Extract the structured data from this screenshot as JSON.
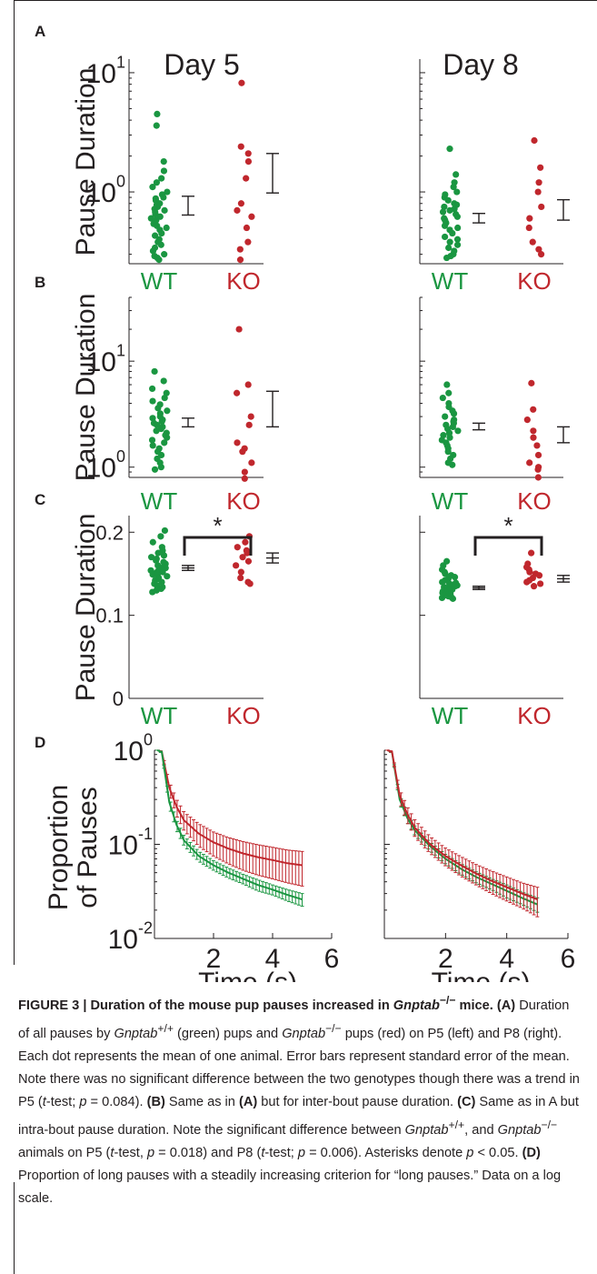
{
  "figure": {
    "panel_letters": [
      "A",
      "B",
      "C",
      "D"
    ],
    "columns": [
      "Day 5",
      "Day 8"
    ],
    "ylabel_pause": "Pause Duration",
    "ylabel_prop_1": "Proportion",
    "ylabel_prop_2": "of Pauses",
    "xlabel_time": "Time (s)",
    "groups": [
      "WT",
      "KO"
    ],
    "significance": "*",
    "colors": {
      "WT": "#1a9641",
      "KO": "#c0272d",
      "axis": "#231f20"
    }
  },
  "chart_data": [
    {
      "panel": "A",
      "column": "Day 5",
      "type": "scatter",
      "yscale": "log",
      "ylim": [
        0.25,
        13
      ],
      "yticks": [
        {
          "value": 1,
          "label": "10^0"
        },
        {
          "value": 10,
          "label": "10^1"
        }
      ],
      "series": [
        {
          "name": "WT",
          "values": [
            4.5,
            3.6,
            1.8,
            1.5,
            1.3,
            1.2,
            1.1,
            1.0,
            0.95,
            0.9,
            0.88,
            0.85,
            0.8,
            0.78,
            0.75,
            0.72,
            0.7,
            0.68,
            0.65,
            0.62,
            0.6,
            0.58,
            0.56,
            0.54,
            0.52,
            0.5,
            0.48,
            0.45,
            0.43,
            0.4,
            0.38,
            0.36,
            0.34,
            0.32,
            0.3,
            0.29,
            0.28,
            0.27
          ]
        },
        {
          "name": "KO",
          "values": [
            8.2,
            2.4,
            2.1,
            1.8,
            1.3,
            0.8,
            0.7,
            0.62,
            0.5,
            0.38,
            0.33,
            0.27
          ]
        }
      ],
      "errorbars": [
        {
          "name": "WT",
          "mean": 0.75,
          "low": 0.64,
          "high": 0.92
        },
        {
          "name": "KO",
          "mean": 1.4,
          "low": 0.98,
          "high": 2.1
        }
      ]
    },
    {
      "panel": "A",
      "column": "Day 8",
      "type": "scatter",
      "yscale": "log",
      "ylim": [
        0.25,
        13
      ],
      "yticks": [
        {
          "value": 1,
          "label": ""
        },
        {
          "value": 10,
          "label": ""
        }
      ],
      "series": [
        {
          "name": "WT",
          "values": [
            2.3,
            1.4,
            1.2,
            1.1,
            1.0,
            0.95,
            0.9,
            0.85,
            0.8,
            0.78,
            0.75,
            0.72,
            0.7,
            0.68,
            0.65,
            0.62,
            0.6,
            0.58,
            0.55,
            0.52,
            0.5,
            0.48,
            0.45,
            0.42,
            0.4,
            0.38,
            0.36,
            0.34,
            0.32,
            0.3,
            0.29,
            0.28
          ]
        },
        {
          "name": "KO",
          "values": [
            2.7,
            1.6,
            1.2,
            1.0,
            0.75,
            0.6,
            0.5,
            0.38,
            0.33,
            0.3
          ]
        }
      ],
      "errorbars": [
        {
          "name": "WT",
          "mean": 0.6,
          "low": 0.55,
          "high": 0.66
        },
        {
          "name": "KO",
          "mean": 0.7,
          "low": 0.58,
          "high": 0.86
        }
      ]
    },
    {
      "panel": "B",
      "column": "Day 5",
      "type": "scatter",
      "yscale": "log",
      "ylim": [
        0.8,
        40
      ],
      "yticks": [
        {
          "value": 1,
          "label": "10^0"
        },
        {
          "value": 10,
          "label": "10^1"
        }
      ],
      "series": [
        {
          "name": "WT",
          "values": [
            8.0,
            6.5,
            5.5,
            5.0,
            4.5,
            4.2,
            3.9,
            3.6,
            3.4,
            3.2,
            3.0,
            2.9,
            2.8,
            2.7,
            2.6,
            2.5,
            2.4,
            2.3,
            2.2,
            2.1,
            2.0,
            1.9,
            1.8,
            1.7,
            1.6,
            1.5,
            1.4,
            1.3,
            1.2,
            1.1,
            1.0,
            0.95
          ]
        },
        {
          "name": "KO",
          "values": [
            20,
            6.0,
            5.0,
            3.0,
            2.5,
            1.7,
            1.5,
            1.4,
            1.1,
            0.9,
            0.78
          ]
        }
      ],
      "errorbars": [
        {
          "name": "WT",
          "mean": 2.6,
          "low": 2.4,
          "high": 2.9
        },
        {
          "name": "KO",
          "mean": 3.4,
          "low": 2.4,
          "high": 5.2
        }
      ]
    },
    {
      "panel": "B",
      "column": "Day 8",
      "type": "scatter",
      "yscale": "log",
      "ylim": [
        0.8,
        40
      ],
      "yticks": [
        {
          "value": 1,
          "label": ""
        },
        {
          "value": 10,
          "label": ""
        }
      ],
      "series": [
        {
          "name": "WT",
          "values": [
            6.0,
            5.0,
            4.5,
            4.0,
            3.7,
            3.4,
            3.2,
            3.0,
            2.8,
            2.7,
            2.6,
            2.5,
            2.4,
            2.3,
            2.2,
            2.1,
            2.0,
            1.9,
            1.8,
            1.7,
            1.6,
            1.5,
            1.4,
            1.3,
            1.2,
            1.1,
            1.05
          ]
        },
        {
          "name": "KO",
          "values": [
            6.2,
            3.5,
            2.8,
            2.2,
            1.9,
            1.6,
            1.3,
            1.1,
            1.0,
            0.95,
            0.8
          ]
        }
      ],
      "errorbars": [
        {
          "name": "WT",
          "mean": 2.4,
          "low": 2.25,
          "high": 2.6
        },
        {
          "name": "KO",
          "mean": 2.0,
          "low": 1.7,
          "high": 2.4
        }
      ]
    },
    {
      "panel": "C",
      "column": "Day 5",
      "type": "scatter",
      "yscale": "linear",
      "ylim": [
        0,
        0.22
      ],
      "yticks": [
        {
          "value": 0,
          "label": "0"
        },
        {
          "value": 0.1,
          "label": "0.1"
        },
        {
          "value": 0.2,
          "label": "0.2"
        }
      ],
      "series": [
        {
          "name": "WT",
          "values": [
            0.202,
            0.195,
            0.188,
            0.182,
            0.178,
            0.175,
            0.172,
            0.17,
            0.168,
            0.166,
            0.164,
            0.162,
            0.16,
            0.158,
            0.157,
            0.156,
            0.155,
            0.154,
            0.153,
            0.152,
            0.151,
            0.15,
            0.149,
            0.148,
            0.147,
            0.146,
            0.145,
            0.144,
            0.142,
            0.14,
            0.138,
            0.136,
            0.134,
            0.132,
            0.13,
            0.128
          ]
        },
        {
          "name": "KO",
          "values": [
            0.195,
            0.188,
            0.182,
            0.178,
            0.175,
            0.17,
            0.165,
            0.16,
            0.152,
            0.145,
            0.14,
            0.138
          ]
        }
      ],
      "errorbars": [
        {
          "name": "WT",
          "mean": 0.157,
          "low": 0.154,
          "high": 0.16
        },
        {
          "name": "KO",
          "mean": 0.169,
          "low": 0.163,
          "high": 0.175
        }
      ],
      "bracket": {
        "from": "WT",
        "to": "KO",
        "label": "*"
      }
    },
    {
      "panel": "C",
      "column": "Day 8",
      "type": "scatter",
      "yscale": "linear",
      "ylim": [
        0,
        0.22
      ],
      "yticks": [
        {
          "value": 0,
          "label": ""
        },
        {
          "value": 0.1,
          "label": ""
        },
        {
          "value": 0.2,
          "label": ""
        }
      ],
      "series": [
        {
          "name": "WT",
          "values": [
            0.165,
            0.16,
            0.155,
            0.152,
            0.15,
            0.148,
            0.146,
            0.144,
            0.142,
            0.14,
            0.139,
            0.138,
            0.137,
            0.136,
            0.135,
            0.134,
            0.133,
            0.132,
            0.131,
            0.13,
            0.129,
            0.128,
            0.127,
            0.126,
            0.125,
            0.124,
            0.123,
            0.122,
            0.121,
            0.12
          ]
        },
        {
          "name": "KO",
          "values": [
            0.175,
            0.162,
            0.158,
            0.155,
            0.152,
            0.15,
            0.148,
            0.145,
            0.142,
            0.14,
            0.138,
            0.135
          ]
        }
      ],
      "errorbars": [
        {
          "name": "WT",
          "mean": 0.133,
          "low": 0.131,
          "high": 0.135
        },
        {
          "name": "KO",
          "mean": 0.144,
          "low": 0.14,
          "high": 0.148
        }
      ],
      "bracket": {
        "from": "WT",
        "to": "KO",
        "label": "*"
      }
    },
    {
      "panel": "D",
      "column": "Day 5",
      "type": "line",
      "yscale": "log",
      "ylim": [
        0.01,
        1
      ],
      "xlim": [
        0,
        6
      ],
      "xticks": [
        2,
        4,
        6
      ],
      "yticks": [
        {
          "value": 0.01,
          "label": "10^-2"
        },
        {
          "value": 0.1,
          "label": "10^-1"
        },
        {
          "value": 1,
          "label": "10^0"
        }
      ],
      "x": [
        0.1,
        0.25,
        0.5,
        0.75,
        1.0,
        1.5,
        2.0,
        2.5,
        3.0,
        3.5,
        4.0,
        4.5,
        5.0
      ],
      "series": [
        {
          "name": "WT",
          "values": [
            1.0,
            0.95,
            0.28,
            0.16,
            0.11,
            0.075,
            0.06,
            0.05,
            0.043,
            0.037,
            0.033,
            0.029,
            0.026
          ],
          "err": [
            0.0,
            0.02,
            0.03,
            0.02,
            0.013,
            0.009,
            0.007,
            0.006,
            0.005,
            0.005,
            0.004,
            0.004,
            0.004
          ]
        },
        {
          "name": "KO",
          "values": [
            1.0,
            0.96,
            0.4,
            0.25,
            0.18,
            0.13,
            0.105,
            0.09,
            0.08,
            0.073,
            0.068,
            0.063,
            0.06
          ],
          "err": [
            0.0,
            0.02,
            0.06,
            0.05,
            0.04,
            0.035,
            0.03,
            0.028,
            0.027,
            0.026,
            0.025,
            0.024,
            0.024
          ]
        }
      ]
    },
    {
      "panel": "D",
      "column": "Day 8",
      "type": "line",
      "yscale": "log",
      "ylim": [
        0.01,
        1
      ],
      "xlim": [
        0,
        6
      ],
      "xticks": [
        2,
        4,
        6
      ],
      "yticks": [
        {
          "value": 0.01,
          "label": ""
        },
        {
          "value": 0.1,
          "label": ""
        },
        {
          "value": 1,
          "label": ""
        }
      ],
      "x": [
        0.1,
        0.25,
        0.5,
        0.75,
        1.0,
        1.5,
        2.0,
        2.5,
        3.0,
        3.5,
        4.0,
        4.5,
        5.0
      ],
      "series": [
        {
          "name": "WT",
          "values": [
            1.0,
            0.95,
            0.3,
            0.19,
            0.14,
            0.095,
            0.07,
            0.055,
            0.045,
            0.038,
            0.032,
            0.027,
            0.023
          ],
          "err": [
            0.0,
            0.02,
            0.03,
            0.02,
            0.015,
            0.01,
            0.008,
            0.007,
            0.006,
            0.005,
            0.005,
            0.004,
            0.004
          ]
        },
        {
          "name": "KO",
          "values": [
            1.0,
            0.96,
            0.33,
            0.21,
            0.15,
            0.1,
            0.075,
            0.06,
            0.049,
            0.041,
            0.035,
            0.03,
            0.026
          ],
          "err": [
            0.0,
            0.02,
            0.05,
            0.04,
            0.03,
            0.02,
            0.016,
            0.014,
            0.012,
            0.011,
            0.01,
            0.009,
            0.009
          ]
        }
      ]
    }
  ],
  "caption": {
    "label": "FIGURE 3 |",
    "title_pre": " Duration of the mouse pup pauses increased in ",
    "gene": "Gnptab",
    "title_sup": "−/−",
    "title_post": " mice.",
    "a_label": "(A)",
    "a_text_1": " Duration of all pauses by ",
    "a_sup_wt": "+/+",
    "a_text_2": " (green) pups and ",
    "a_sup_ko": "−/−",
    "a_text_3": " pups (red) on P5 (left) and P8 (right). Each dot represents the mean of one animal. Error bars represent standard error of the mean. Note there was no significant difference between the two genotypes though there was a trend in P5 (",
    "t_italic": "t",
    "a_text_4": "-test; ",
    "p_italic": "p",
    "a_text_5": " = 0.084). ",
    "b_label": "(B)",
    "b_text_1": " Same as in ",
    "b_ref": "(A)",
    "b_text_2": " but for inter-bout pause duration. ",
    "c_label": "(C)",
    "c_text_1": " Same as in A but intra-bout pause duration. Note the significant difference between ",
    "c_sup_wt": "+/+",
    "c_text_2": ", and ",
    "c_sup_ko": "−/−",
    "c_text_3": " animals on P5 (",
    "c_text_4": "-test, ",
    "c_text_5": " = 0.018) and P8 (",
    "c_text_6": "-test; ",
    "c_text_7": " = 0.006). Asterisks denote ",
    "c_text_8": " < 0.05. ",
    "d_label": "(D)",
    "d_text": " Proportion of long pauses with a steadily increasing criterion for “long pauses.” Data on a log scale."
  }
}
